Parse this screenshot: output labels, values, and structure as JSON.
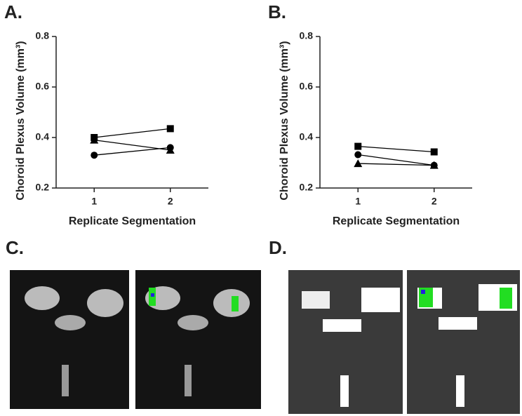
{
  "chart_data": [
    {
      "type": "line",
      "panel_label": "A.",
      "y_label": "Choroid Plexus Volume (mm³)",
      "x_label": "Replicate Segmentation",
      "x": [
        1,
        2
      ],
      "xlim": [
        0.5,
        2.5
      ],
      "xticks": [
        1,
        2
      ],
      "ylim": [
        0.2,
        0.8
      ],
      "yticks": [
        0.2,
        0.4,
        0.6,
        0.8
      ],
      "series": [
        {
          "marker": "square",
          "color": "#000000",
          "values": [
            0.4,
            0.435
          ]
        },
        {
          "marker": "circle",
          "color": "#000000",
          "values": [
            0.33,
            0.36
          ]
        },
        {
          "marker": "triangle",
          "color": "#000000",
          "values": [
            0.39,
            0.35
          ]
        }
      ]
    },
    {
      "type": "line",
      "panel_label": "B.",
      "y_label": "Choroid Plexus Volume (mm³)",
      "x_label": "Replicate Segmentation",
      "x": [
        1,
        2
      ],
      "xlim": [
        0.5,
        2.5
      ],
      "xticks": [
        1,
        2
      ],
      "ylim": [
        0.2,
        0.8
      ],
      "yticks": [
        0.2,
        0.4,
        0.6,
        0.8
      ],
      "series": [
        {
          "marker": "square",
          "color": "#000000",
          "values": [
            0.365,
            0.343
          ]
        },
        {
          "marker": "circle",
          "color": "#000000",
          "values": [
            0.332,
            0.29
          ]
        },
        {
          "marker": "triangle",
          "color": "#000000",
          "values": [
            0.297,
            0.29
          ]
        }
      ]
    }
  ],
  "image_panels": [
    {
      "label": "C."
    },
    {
      "label": "D."
    }
  ]
}
